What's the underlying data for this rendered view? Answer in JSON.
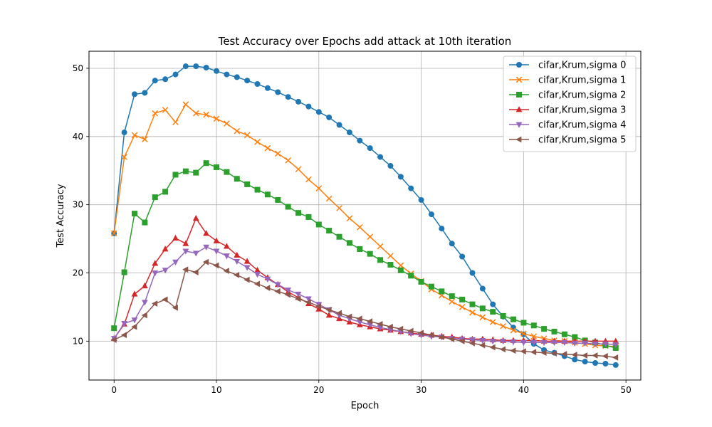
{
  "chart_data": {
    "type": "line",
    "title": "Test Accuracy over Epochs add attack at 10th iteration",
    "xlabel": "Epoch",
    "ylabel": "Test Accuracy",
    "xlim": [
      -2.45,
      51.45
    ],
    "ylim": [
      4.3,
      52.5
    ],
    "xticks": [
      0,
      10,
      20,
      30,
      40,
      50
    ],
    "yticks": [
      10,
      20,
      30,
      40,
      50
    ],
    "grid": true,
    "legend_position": "top-right",
    "x": [
      0,
      1,
      2,
      3,
      4,
      5,
      6,
      7,
      8,
      9,
      10,
      11,
      12,
      13,
      14,
      15,
      16,
      17,
      18,
      19,
      20,
      21,
      22,
      23,
      24,
      25,
      26,
      27,
      28,
      29,
      30,
      31,
      32,
      33,
      34,
      35,
      36,
      37,
      38,
      39,
      40,
      41,
      42,
      43,
      44,
      45,
      46,
      47,
      48,
      49
    ],
    "series": [
      {
        "name": "cifar,Krum,sigma 0",
        "color": "#1f77b4",
        "marker": "circle",
        "values": [
          25.8,
          40.6,
          46.2,
          46.4,
          48.2,
          48.4,
          49.1,
          50.3,
          50.3,
          50.1,
          49.6,
          49.1,
          48.7,
          48.2,
          47.7,
          47.1,
          46.5,
          45.8,
          45.1,
          44.4,
          43.6,
          42.8,
          41.7,
          40.6,
          39.4,
          38.3,
          37.0,
          35.7,
          34.1,
          32.4,
          30.7,
          28.6,
          26.5,
          24.3,
          22.4,
          20.0,
          17.7,
          15.4,
          13.6,
          12.0,
          11.0,
          9.6,
          8.7,
          8.3,
          7.8,
          7.3,
          7.0,
          6.8,
          6.7,
          6.5
        ]
      },
      {
        "name": "cifar,Krum,sigma 1",
        "color": "#ff7f0e",
        "marker": "x",
        "values": [
          25.8,
          37.0,
          40.2,
          39.6,
          43.4,
          43.9,
          42.1,
          44.7,
          43.4,
          43.2,
          42.6,
          41.9,
          40.8,
          40.2,
          39.2,
          38.3,
          37.5,
          36.5,
          35.2,
          33.7,
          32.4,
          30.9,
          29.5,
          28.0,
          26.7,
          25.3,
          23.9,
          22.5,
          21.1,
          19.9,
          18.8,
          17.6,
          16.7,
          15.8,
          15.0,
          14.2,
          13.5,
          12.8,
          12.2,
          11.6,
          11.1,
          10.7,
          10.4,
          10.1,
          10.0,
          9.8,
          9.6,
          9.4,
          9.3,
          9.2
        ]
      },
      {
        "name": "cifar,Krum,sigma 2",
        "color": "#2ca02c",
        "marker": "square",
        "values": [
          11.9,
          20.1,
          28.7,
          27.4,
          31.1,
          31.9,
          34.4,
          34.9,
          34.7,
          36.1,
          35.5,
          34.8,
          33.8,
          33.0,
          32.2,
          31.5,
          30.7,
          29.7,
          28.8,
          28.2,
          27.1,
          26.2,
          25.3,
          24.4,
          23.5,
          22.8,
          21.9,
          21.2,
          20.4,
          19.6,
          18.7,
          18.0,
          17.3,
          16.6,
          16.1,
          15.4,
          14.8,
          14.3,
          13.7,
          13.2,
          12.7,
          12.3,
          11.8,
          11.4,
          11.0,
          10.6,
          10.1,
          9.8,
          9.4,
          9.0
        ]
      },
      {
        "name": "cifar,Krum,sigma 3",
        "color": "#d62728",
        "marker": "triangle-up",
        "values": [
          10.4,
          12.5,
          16.9,
          18.1,
          21.4,
          23.5,
          25.1,
          24.3,
          28.0,
          25.8,
          24.7,
          23.9,
          22.6,
          21.7,
          20.4,
          19.3,
          18.3,
          17.2,
          16.4,
          15.5,
          14.7,
          13.8,
          13.3,
          12.8,
          12.4,
          12.1,
          11.8,
          11.6,
          11.4,
          11.2,
          11.0,
          10.9,
          10.7,
          10.6,
          10.4,
          10.3,
          10.3,
          10.2,
          10.1,
          10.1,
          10.1,
          10.1,
          10.0,
          10.0,
          10.0,
          10.0,
          10.0,
          10.0,
          10.0,
          10.0
        ]
      },
      {
        "name": "cifar,Krum,sigma 4",
        "color": "#9467bd",
        "marker": "triangle-down",
        "values": [
          10.4,
          12.6,
          13.1,
          15.7,
          20.0,
          20.4,
          21.6,
          23.2,
          22.9,
          23.8,
          23.2,
          22.5,
          21.7,
          20.8,
          19.8,
          19.1,
          18.3,
          17.5,
          16.9,
          16.2,
          15.4,
          14.6,
          13.8,
          13.3,
          12.8,
          12.4,
          12.0,
          11.7,
          11.4,
          11.1,
          10.9,
          10.7,
          10.6,
          10.4,
          10.3,
          10.2,
          10.1,
          10.0,
          10.0,
          9.9,
          9.8,
          9.8,
          9.8,
          9.8,
          9.8,
          9.7,
          9.7,
          9.6,
          9.6,
          9.5
        ]
      },
      {
        "name": "cifar,Krum,sigma 5",
        "color": "#8c564b",
        "marker": "triangle-left",
        "values": [
          10.2,
          10.9,
          12.1,
          13.8,
          15.5,
          16.1,
          14.9,
          20.5,
          20.1,
          21.6,
          21.1,
          20.3,
          19.7,
          19.0,
          18.4,
          17.8,
          17.3,
          16.8,
          16.2,
          15.7,
          15.1,
          14.6,
          14.1,
          13.6,
          13.3,
          12.9,
          12.5,
          12.1,
          11.8,
          11.5,
          11.2,
          10.9,
          10.6,
          10.3,
          10.0,
          9.7,
          9.4,
          9.1,
          8.8,
          8.6,
          8.5,
          8.4,
          8.3,
          8.2,
          8.1,
          8.0,
          7.9,
          7.9,
          7.8,
          7.6
        ]
      }
    ]
  }
}
